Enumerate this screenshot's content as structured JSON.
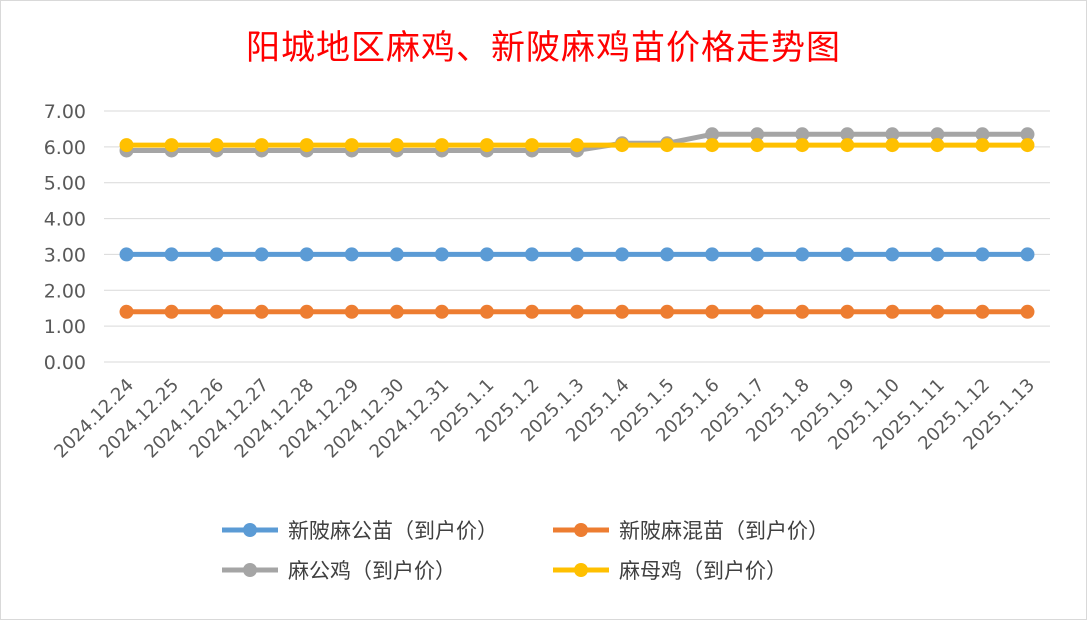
{
  "chart_data": {
    "type": "line",
    "title": "阳城地区麻鸡、新陂麻鸡苗价格走势图",
    "xlabel": "",
    "ylabel": "",
    "ylim": [
      0,
      7
    ],
    "yticks": [
      "0.00",
      "1.00",
      "2.00",
      "3.00",
      "4.00",
      "5.00",
      "6.00",
      "7.00"
    ],
    "grid": true,
    "legend_position": "bottom",
    "categories": [
      "2024.12.24",
      "2024.12.25",
      "2024.12.26",
      "2024.12.27",
      "2024.12.28",
      "2024.12.29",
      "2024.12.30",
      "2024.12.31",
      "2025.1.1",
      "2025.1.2",
      "2025.1.3",
      "2025.1.4",
      "2025.1.5",
      "2025.1.6",
      "2025.1.7",
      "2025.1.8",
      "2025.1.9",
      "2025.1.10",
      "2025.1.11",
      "2025.1.12",
      "2025.1.13"
    ],
    "series": [
      {
        "name": "新陂麻公苗（到户价）",
        "color": "#5b9bd5",
        "values": [
          3,
          3,
          3,
          3,
          3,
          3,
          3,
          3,
          3,
          3,
          3,
          3,
          3,
          3,
          3,
          3,
          3,
          3,
          3,
          3,
          3
        ]
      },
      {
        "name": "新陂麻混苗（到户价）",
        "color": "#ed7d31",
        "values": [
          1.4,
          1.4,
          1.4,
          1.4,
          1.4,
          1.4,
          1.4,
          1.4,
          1.4,
          1.4,
          1.4,
          1.4,
          1.4,
          1.4,
          1.4,
          1.4,
          1.4,
          1.4,
          1.4,
          1.4,
          1.4
        ]
      },
      {
        "name": "麻公鸡（到户价）",
        "color": "#a5a5a5",
        "values": [
          5.9,
          5.9,
          5.9,
          5.9,
          5.9,
          5.9,
          5.9,
          5.9,
          5.9,
          5.9,
          5.9,
          6.1,
          6.1,
          6.35,
          6.35,
          6.35,
          6.35,
          6.35,
          6.35,
          6.35,
          6.35
        ]
      },
      {
        "name": "麻母鸡（到户价）",
        "color": "#ffc000",
        "values": [
          6.05,
          6.05,
          6.05,
          6.05,
          6.05,
          6.05,
          6.05,
          6.05,
          6.05,
          6.05,
          6.05,
          6.05,
          6.05,
          6.05,
          6.05,
          6.05,
          6.05,
          6.05,
          6.05,
          6.05,
          6.05
        ]
      }
    ]
  }
}
